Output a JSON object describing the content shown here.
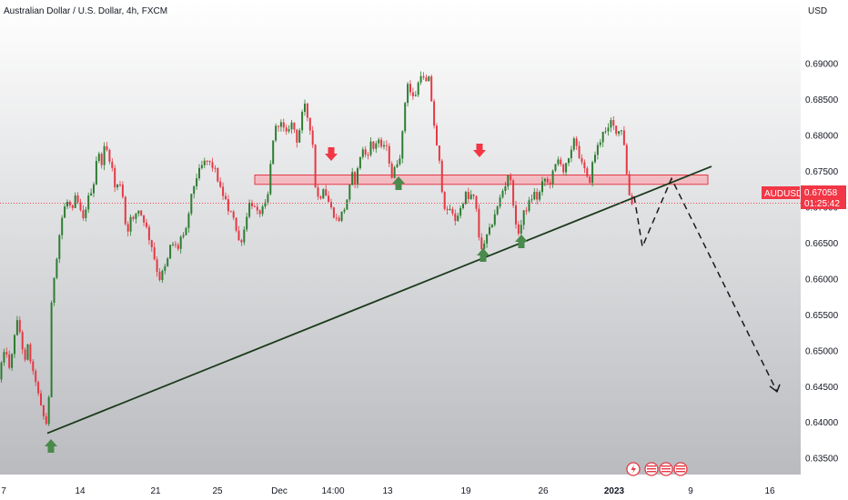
{
  "header": {
    "title": "Australian Dollar / U.S. Dollar, 4h, FXCM",
    "currency": "USD"
  },
  "price_label": {
    "symbol": "AUDUSD",
    "price": "0.67058",
    "countdown": "01:25:42"
  },
  "colors": {
    "up": "#2e7d32",
    "down": "#e53945",
    "zone_fill": "#f4b4bb",
    "zone_stroke": "#e53945",
    "trendline": "#1b3a1b",
    "badge": "#f23645",
    "arrow_down": "#f23645",
    "arrow_up": "#4a8a4c"
  },
  "chart_data": {
    "type": "candlestick",
    "yaxis": {
      "min": 0.63363,
      "max": 0.69294,
      "ticks": [
        "0.69000",
        "0.68500",
        "0.68000",
        "0.67500",
        "0.67000",
        "0.66500",
        "0.66000",
        "0.65500",
        "0.65000",
        "0.64500",
        "0.64000",
        "0.63500"
      ]
    },
    "xaxis_labels": [
      {
        "text": "7",
        "bold": false
      },
      {
        "text": "14",
        "bold": false
      },
      {
        "text": "21",
        "bold": false
      },
      {
        "text": "25",
        "bold": false
      },
      {
        "text": "Dec",
        "bold": false
      },
      {
        "text": "14:00",
        "bold": false
      },
      {
        "text": "13",
        "bold": false
      },
      {
        "text": "19",
        "bold": false
      },
      {
        "text": "26",
        "bold": false
      },
      {
        "text": "2023",
        "bold": true
      },
      {
        "text": "9",
        "bold": false
      },
      {
        "text": "16",
        "bold": false
      }
    ],
    "resistance_zone": {
      "top": 0.6745,
      "bottom": 0.6732
    },
    "trendline": {
      "from": {
        "x": "10 Nov",
        "y": 0.6385
      },
      "to": {
        "x": "10 Jan",
        "y": 0.6757
      }
    },
    "projection_path": [
      0.6715,
      0.6645,
      0.674,
      0.6443
    ],
    "last_price": 0.67058
  }
}
